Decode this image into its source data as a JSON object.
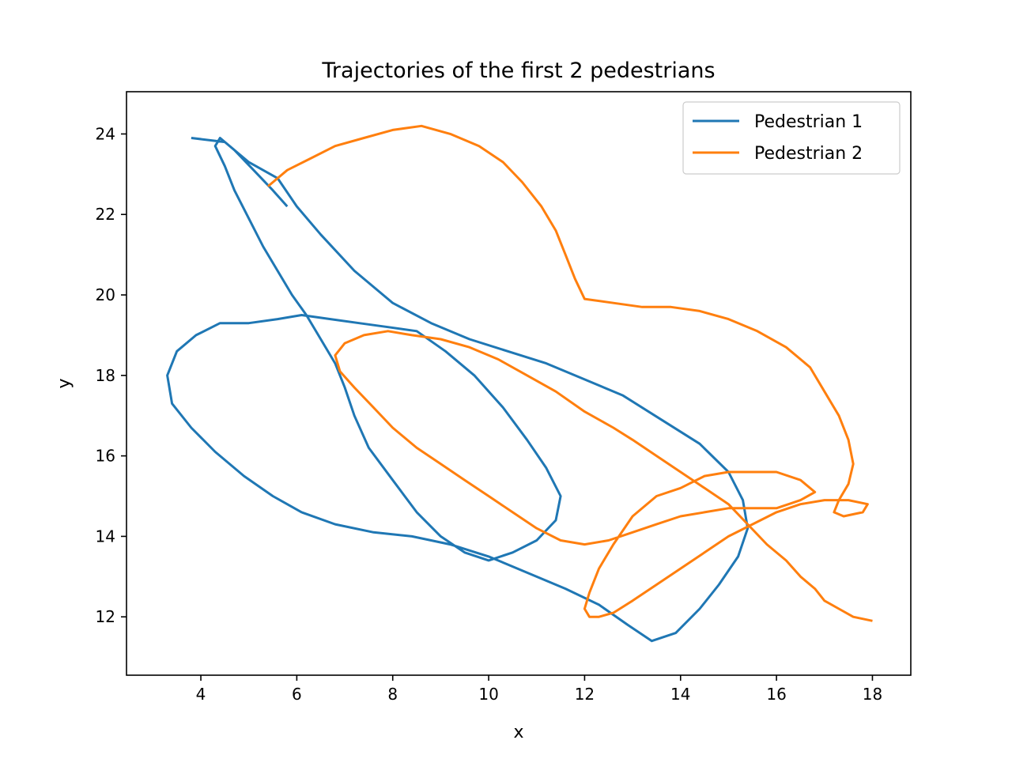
{
  "chart_data": {
    "type": "line",
    "title": "Trajectories of the first 2 pedestrians",
    "xlabel": "x",
    "ylabel": "y",
    "xlim": [
      2.45,
      18.8
    ],
    "ylim": [
      10.55,
      25.05
    ],
    "xticks": [
      4,
      6,
      8,
      10,
      12,
      14,
      16,
      18
    ],
    "yticks": [
      12,
      14,
      16,
      18,
      20,
      22,
      24
    ],
    "grid": false,
    "legend_position": "top-right",
    "series": [
      {
        "name": "Pedestrian 1",
        "color": "#1f77b4",
        "x": [
          3.8,
          4.5,
          5.0,
          5.6,
          6.0,
          6.5,
          7.2,
          8.0,
          8.8,
          9.6,
          10.4,
          11.2,
          12.0,
          12.8,
          13.6,
          14.4,
          15.0,
          15.3,
          15.4,
          15.2,
          14.8,
          14.4,
          13.9,
          13.4,
          12.9,
          12.3,
          11.6,
          10.8,
          10.0,
          9.2,
          8.4,
          7.6,
          6.8,
          6.1,
          5.5,
          4.9,
          4.3,
          3.8,
          3.4,
          3.3,
          3.5,
          3.9,
          4.4,
          5.0,
          5.6,
          6.1,
          6.7,
          7.3,
          7.9,
          8.5,
          9.1,
          9.7,
          10.3,
          10.8,
          11.2,
          11.5,
          11.4,
          11.0,
          10.5,
          10.0,
          9.5,
          9.0,
          8.5,
          8.0,
          7.5,
          7.2,
          7.0,
          6.8,
          6.5,
          6.2,
          5.9,
          5.6,
          5.3,
          5.0,
          4.7,
          4.5,
          4.3,
          4.4,
          4.7,
          5.1,
          5.5,
          5.8
        ],
        "y": [
          23.9,
          23.8,
          23.3,
          22.9,
          22.2,
          21.5,
          20.6,
          19.8,
          19.3,
          18.9,
          18.6,
          18.3,
          17.9,
          17.5,
          16.9,
          16.3,
          15.6,
          14.9,
          14.2,
          13.5,
          12.8,
          12.2,
          11.6,
          11.4,
          11.8,
          12.3,
          12.7,
          13.1,
          13.5,
          13.8,
          14.0,
          14.1,
          14.3,
          14.6,
          15.0,
          15.5,
          16.1,
          16.7,
          17.3,
          18.0,
          18.6,
          19.0,
          19.3,
          19.3,
          19.4,
          19.5,
          19.4,
          19.3,
          19.2,
          19.1,
          18.6,
          18.0,
          17.2,
          16.4,
          15.7,
          15.0,
          14.4,
          13.9,
          13.6,
          13.4,
          13.6,
          14.0,
          14.6,
          15.4,
          16.2,
          17.0,
          17.7,
          18.3,
          18.9,
          19.5,
          20.0,
          20.6,
          21.2,
          21.9,
          22.6,
          23.2,
          23.7,
          23.9,
          23.6,
          23.1,
          22.6,
          22.2
        ]
      },
      {
        "name": "Pedestrian 2",
        "color": "#ff7f0e",
        "x": [
          5.4,
          5.8,
          6.3,
          6.8,
          7.4,
          8.0,
          8.6,
          9.2,
          9.8,
          10.3,
          10.7,
          11.1,
          11.4,
          11.6,
          11.8,
          12.0,
          12.6,
          13.2,
          13.8,
          14.4,
          15.0,
          15.6,
          16.2,
          16.7,
          17.0,
          17.3,
          17.5,
          17.6,
          17.5,
          17.3,
          17.2,
          17.4,
          17.8,
          17.9,
          17.5,
          17.0,
          16.5,
          16.0,
          15.5,
          15.0,
          14.5,
          14.0,
          13.5,
          13.0,
          12.6,
          12.3,
          12.1,
          12.0,
          12.1,
          12.3,
          12.6,
          13.0,
          13.5,
          14.0,
          14.5,
          15.0,
          15.5,
          16.0,
          16.5,
          16.8,
          16.5,
          16.0,
          15.5,
          15.0,
          14.5,
          14.0,
          13.5,
          13.0,
          12.5,
          12.0,
          11.5,
          11.0,
          10.5,
          10.0,
          9.5,
          9.0,
          8.5,
          8.0,
          7.6,
          7.2,
          6.9,
          6.8,
          7.0,
          7.4,
          7.9,
          8.4,
          9.0,
          9.6,
          10.2,
          10.8,
          11.4,
          12.0,
          12.6,
          13.0,
          13.5,
          14.0,
          14.5,
          15.0,
          15.4,
          15.8,
          16.2,
          16.5,
          16.8,
          17.0,
          17.3,
          17.6,
          18.0
        ],
        "y": [
          22.7,
          23.1,
          23.4,
          23.7,
          23.9,
          24.1,
          24.2,
          24.0,
          23.7,
          23.3,
          22.8,
          22.2,
          21.6,
          21.0,
          20.4,
          19.9,
          19.8,
          19.7,
          19.7,
          19.6,
          19.4,
          19.1,
          18.7,
          18.2,
          17.6,
          17.0,
          16.4,
          15.8,
          15.3,
          14.9,
          14.6,
          14.5,
          14.6,
          14.8,
          14.9,
          14.9,
          14.8,
          14.6,
          14.3,
          14.0,
          13.6,
          13.2,
          12.8,
          12.4,
          12.1,
          12.0,
          12.0,
          12.2,
          12.6,
          13.2,
          13.8,
          14.5,
          15.0,
          15.2,
          15.5,
          15.6,
          15.6,
          15.6,
          15.4,
          15.1,
          14.9,
          14.7,
          14.7,
          14.7,
          14.6,
          14.5,
          14.3,
          14.1,
          13.9,
          13.8,
          13.9,
          14.2,
          14.6,
          15.0,
          15.4,
          15.8,
          16.2,
          16.7,
          17.2,
          17.7,
          18.1,
          18.5,
          18.8,
          19.0,
          19.1,
          19.0,
          18.9,
          18.7,
          18.4,
          18.0,
          17.6,
          17.1,
          16.7,
          16.4,
          16.0,
          15.6,
          15.2,
          14.8,
          14.3,
          13.8,
          13.4,
          13.0,
          12.7,
          12.4,
          12.2,
          12.0,
          11.9
        ]
      }
    ]
  }
}
